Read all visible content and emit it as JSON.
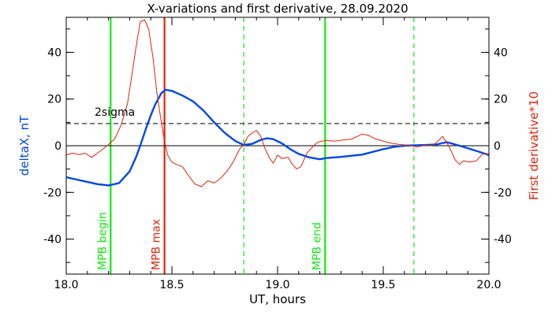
{
  "chart_data": {
    "type": "line",
    "title": "X-variations and first derivative, 28.09.2020",
    "xlabel": "UT, hours",
    "ylabel_left": "deltaX, nT",
    "ylabel_right": "First derivative*10",
    "xlim": [
      18.0,
      20.0
    ],
    "ylim": [
      -55,
      55
    ],
    "x_ticks": [
      18.0,
      18.5,
      19.0,
      19.5,
      20.0
    ],
    "x_tick_labels": [
      "18.0",
      "18.5",
      "19.0",
      "19.5",
      "20.0"
    ],
    "y_ticks": [
      40,
      20,
      0,
      -20,
      -40
    ],
    "y_tick_labels": [
      "40",
      "20",
      "0",
      "-20",
      "-40"
    ],
    "grid": false,
    "threshold": {
      "label": "2sigma",
      "value": 9.5,
      "style": "dashed",
      "color": "#000000"
    },
    "zero_line": 0,
    "series": [
      {
        "name": "deltaX, nT",
        "axis": "left",
        "color": "#0047e6",
        "points": [
          [
            18.0,
            -13.5
          ],
          [
            18.05,
            -14.5
          ],
          [
            18.1,
            -15.5
          ],
          [
            18.15,
            -16.5
          ],
          [
            18.2,
            -17.0
          ],
          [
            18.25,
            -16.0
          ],
          [
            18.3,
            -11.0
          ],
          [
            18.33,
            -5.0
          ],
          [
            18.35,
            0.0
          ],
          [
            18.38,
            8.0
          ],
          [
            18.4,
            13.0
          ],
          [
            18.42,
            17.5
          ],
          [
            18.45,
            22.5
          ],
          [
            18.47,
            24.0
          ],
          [
            18.5,
            23.5
          ],
          [
            18.55,
            21.5
          ],
          [
            18.6,
            19.0
          ],
          [
            18.65,
            15.0
          ],
          [
            18.7,
            10.0
          ],
          [
            18.75,
            5.5
          ],
          [
            18.8,
            2.0
          ],
          [
            18.84,
            0.3
          ],
          [
            18.88,
            0.8
          ],
          [
            18.92,
            2.5
          ],
          [
            18.95,
            3.2
          ],
          [
            18.98,
            2.8
          ],
          [
            19.02,
            1.0
          ],
          [
            19.06,
            -1.5
          ],
          [
            19.1,
            -3.5
          ],
          [
            19.15,
            -5.0
          ],
          [
            19.2,
            -5.8
          ],
          [
            19.23,
            -5.3
          ],
          [
            19.3,
            -4.8
          ],
          [
            19.4,
            -3.8
          ],
          [
            19.5,
            -1.5
          ],
          [
            19.55,
            -0.5
          ],
          [
            19.6,
            0.0
          ],
          [
            19.65,
            0.2
          ],
          [
            19.7,
            0.3
          ],
          [
            19.75,
            0.5
          ],
          [
            19.8,
            1.5
          ],
          [
            19.83,
            0.8
          ],
          [
            19.88,
            -0.5
          ],
          [
            19.95,
            -2.5
          ],
          [
            20.0,
            -4.0
          ]
        ]
      },
      {
        "name": "First derivative*10",
        "axis": "right",
        "color": "#e0240a",
        "points": [
          [
            18.0,
            -4.0
          ],
          [
            18.03,
            -3.2
          ],
          [
            18.06,
            -3.8
          ],
          [
            18.09,
            -3.2
          ],
          [
            18.12,
            -5.0
          ],
          [
            18.15,
            -3.0
          ],
          [
            18.18,
            -1.0
          ],
          [
            18.2,
            0.5
          ],
          [
            18.23,
            3.0
          ],
          [
            18.26,
            9.0
          ],
          [
            18.29,
            18.0
          ],
          [
            18.31,
            30.0
          ],
          [
            18.33,
            42.0
          ],
          [
            18.35,
            53.0
          ],
          [
            18.37,
            54.0
          ],
          [
            18.39,
            50.0
          ],
          [
            18.41,
            38.0
          ],
          [
            18.43,
            22.0
          ],
          [
            18.45,
            10.0
          ],
          [
            18.465,
            2.0
          ],
          [
            18.48,
            -4.0
          ],
          [
            18.5,
            -7.0
          ],
          [
            18.52,
            -8.0
          ],
          [
            18.55,
            -9.0
          ],
          [
            18.58,
            -13.0
          ],
          [
            18.61,
            -16.5
          ],
          [
            18.64,
            -17.5
          ],
          [
            18.67,
            -15.0
          ],
          [
            18.7,
            -16.0
          ],
          [
            18.73,
            -14.0
          ],
          [
            18.76,
            -11.0
          ],
          [
            18.79,
            -7.0
          ],
          [
            18.82,
            -1.5
          ],
          [
            18.84,
            0.5
          ],
          [
            18.86,
            4.0
          ],
          [
            18.88,
            5.5
          ],
          [
            18.9,
            6.5
          ],
          [
            18.92,
            4.0
          ],
          [
            18.94,
            -1.0
          ],
          [
            18.96,
            -5.0
          ],
          [
            18.98,
            -7.5
          ],
          [
            19.0,
            -4.0
          ],
          [
            19.02,
            -5.5
          ],
          [
            19.05,
            -5.0
          ],
          [
            19.07,
            -8.0
          ],
          [
            19.09,
            -10.0
          ],
          [
            19.11,
            -9.0
          ],
          [
            19.14,
            -3.0
          ],
          [
            19.17,
            0.0
          ],
          [
            19.19,
            1.5
          ],
          [
            19.21,
            2.0
          ],
          [
            19.23,
            2.2
          ],
          [
            19.27,
            2.0
          ],
          [
            19.31,
            2.5
          ],
          [
            19.35,
            2.8
          ],
          [
            19.4,
            5.0
          ],
          [
            19.43,
            4.5
          ],
          [
            19.46,
            3.0
          ],
          [
            19.5,
            2.0
          ],
          [
            19.54,
            1.0
          ],
          [
            19.58,
            0.5
          ],
          [
            19.62,
            0.2
          ],
          [
            19.66,
            -0.5
          ],
          [
            19.7,
            0.2
          ],
          [
            19.73,
            0.0
          ],
          [
            19.76,
            2.0
          ],
          [
            19.78,
            4.0
          ],
          [
            19.8,
            1.5
          ],
          [
            19.82,
            -2.0
          ],
          [
            19.84,
            -6.0
          ],
          [
            19.86,
            -8.0
          ],
          [
            19.88,
            -6.5
          ],
          [
            19.91,
            -7.0
          ],
          [
            19.94,
            -6.5
          ],
          [
            19.97,
            -3.5
          ],
          [
            20.0,
            -3.5
          ]
        ]
      }
    ],
    "markers": [
      {
        "x": 18.21,
        "label": "MPB begin",
        "color": "#11e811",
        "style": "solid"
      },
      {
        "x": 18.465,
        "label": "MPB max",
        "color": "#e0240a",
        "style": "solid"
      },
      {
        "x": 18.84,
        "label": "",
        "color": "#11e811",
        "style": "dashed"
      },
      {
        "x": 19.225,
        "label": "MPB end",
        "color": "#11e811",
        "style": "solid"
      },
      {
        "x": 19.645,
        "label": "",
        "color": "#11e811",
        "style": "dashed"
      }
    ]
  }
}
